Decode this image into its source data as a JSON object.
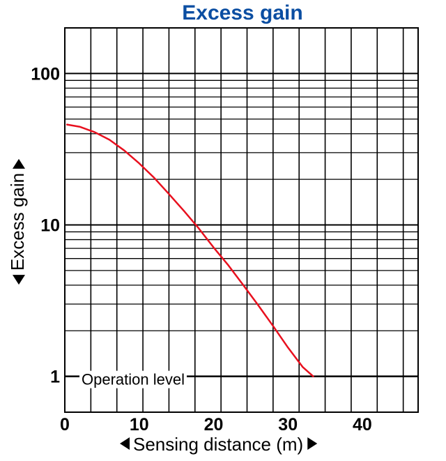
{
  "chart_data": {
    "type": "line",
    "title": "Excess gain",
    "xlabel": "Sensing distance (m)",
    "ylabel": "Excess gain",
    "x_axis_arrows": true,
    "y_axis_arrows": true,
    "xlim": [
      0,
      47.5
    ],
    "ylim": [
      0.58,
      200
    ],
    "yscale": "log",
    "grid": true,
    "xticks": [
      0,
      10,
      20,
      30,
      40
    ],
    "xtick_labels": [
      "0",
      "10",
      "20",
      "30",
      "40"
    ],
    "yticks": [
      1,
      10,
      100
    ],
    "ytick_labels": [
      "1",
      "10",
      "100"
    ],
    "series": [
      {
        "color": "#e8101e",
        "x": [
          0.3,
          2,
          4,
          6,
          8,
          10,
          12,
          14,
          16,
          18,
          20,
          22,
          24,
          26,
          28,
          30,
          32,
          33.4
        ],
        "y": [
          46,
          44.5,
          41,
          36.5,
          31,
          25.5,
          20.5,
          16,
          12.4,
          9.5,
          7.1,
          5.4,
          4.0,
          2.95,
          2.15,
          1.55,
          1.15,
          1.0
        ]
      }
    ],
    "reference_line": {
      "y": 1,
      "label": "Operation level",
      "color": "#000000"
    }
  }
}
